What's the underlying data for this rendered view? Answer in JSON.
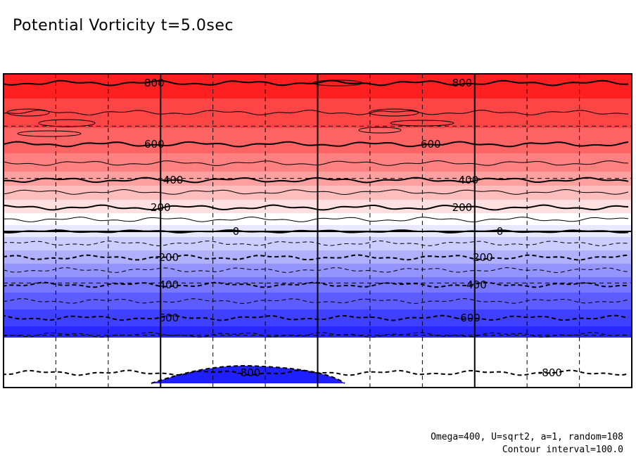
{
  "chart_data": {
    "type": "heatmap",
    "title": "Potential Vorticity t=5.0sec",
    "contour_interval": 100.0,
    "value_range": [
      -900,
      900
    ],
    "levels": [
      800,
      700,
      600,
      500,
      400,
      300,
      200,
      100,
      0,
      -100,
      -200,
      -300,
      -400,
      -500,
      -600,
      -700,
      -800
    ],
    "band_colors": [
      "#fe2020",
      "#fe4545",
      "#fe6464",
      "#fe8080",
      "#fea0a0",
      "#febdbd",
      "#fee0e0",
      "#ffffff",
      "#e8e8ff",
      "#ccccff",
      "#b0b0ff",
      "#9494ff",
      "#7878ff",
      "#5c5cff",
      "#4040ff",
      "#2828ff"
    ],
    "contour_labels": [
      {
        "value": "800",
        "lon": 0.24
      },
      {
        "value": "800",
        "lon": 0.73
      },
      {
        "value": "600",
        "lon": 0.24
      },
      {
        "value": "600",
        "lon": 0.68
      },
      {
        "value": "400",
        "lon": 0.27
      },
      {
        "value": "400",
        "lon": 0.74
      },
      {
        "value": "200",
        "lon": 0.25
      },
      {
        "value": "200",
        "lon": 0.73
      },
      {
        "value": "0",
        "lon": 0.37
      },
      {
        "value": "0",
        "lon": 0.79
      },
      {
        "value": "-200",
        "lon": 0.26
      },
      {
        "value": "-200",
        "lon": 0.76
      },
      {
        "value": "-400",
        "lon": 0.26
      },
      {
        "value": "-400",
        "lon": 0.75
      },
      {
        "value": "-600",
        "lon": 0.26
      },
      {
        "value": "-600",
        "lon": 0.74
      },
      {
        "value": "-800",
        "lon": 0.39
      },
      {
        "value": "-800",
        "lon": 0.87
      }
    ],
    "solid_grid_lon": [
      0.25,
      0.5,
      0.75
    ],
    "dashed_grid_lon": [
      0.0833,
      0.1667,
      0.3333,
      0.4167,
      0.5833,
      0.6667,
      0.8333,
      0.9167
    ],
    "dashed_grid_lat": [
      0.1667,
      0.3333,
      0.6667,
      0.8333
    ]
  },
  "footer": {
    "params": "Omega=400, U=sqrt2, a=1, random=108",
    "interval": "Contour interval=100.0"
  }
}
